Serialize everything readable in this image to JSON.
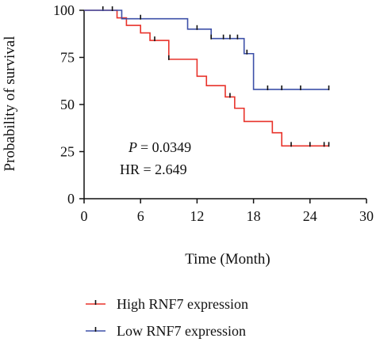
{
  "chart_data": {
    "type": "line",
    "subtype": "kaplan-meier",
    "title": "",
    "xlabel": "Time (Month)",
    "ylabel": "Probability of survival",
    "xlim": [
      0,
      30
    ],
    "ylim": [
      0,
      100
    ],
    "x_ticks": [
      0,
      6,
      12,
      18,
      24,
      30
    ],
    "y_ticks": [
      0,
      25,
      50,
      75,
      100
    ],
    "grid": false,
    "legend_position": "bottom",
    "annotations": {
      "p_value": "= 0.0349",
      "p_symbol": "P",
      "hr": "HR = 2.649"
    },
    "series": [
      {
        "name": "High RNF7 expression",
        "color": "#e8322a",
        "steps": [
          [
            0,
            100
          ],
          [
            3.5,
            96
          ],
          [
            4.5,
            92
          ],
          [
            6,
            88
          ],
          [
            7,
            84
          ],
          [
            9,
            74
          ],
          [
            12,
            65
          ],
          [
            13,
            60
          ],
          [
            15,
            54
          ],
          [
            16,
            48
          ],
          [
            17,
            41
          ],
          [
            20,
            35
          ],
          [
            21,
            28
          ],
          [
            26,
            28
          ]
        ],
        "censor_x": [
          2,
          7.5,
          9,
          15.5,
          22,
          24,
          25.5,
          26
        ]
      },
      {
        "name": "Low RNF7 expression",
        "color": "#3d50a8",
        "steps": [
          [
            0,
            100
          ],
          [
            4,
            95.5
          ],
          [
            11,
            90
          ],
          [
            13.5,
            85
          ],
          [
            17,
            77
          ],
          [
            18,
            58
          ],
          [
            26,
            58
          ]
        ],
        "censor_x": [
          3,
          6,
          12,
          13.5,
          14.8,
          15.5,
          16.3,
          17.3,
          19.5,
          21,
          23,
          26
        ]
      }
    ]
  }
}
